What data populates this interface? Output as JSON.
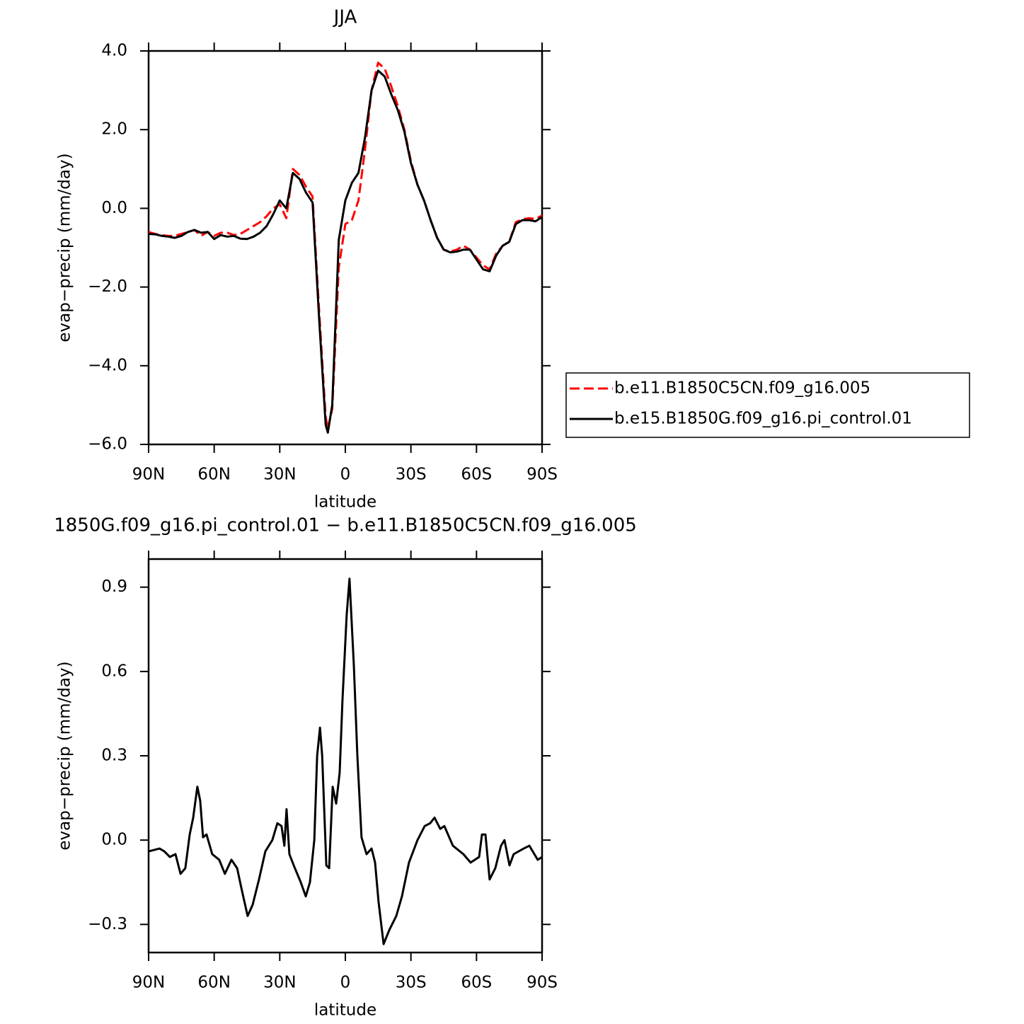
{
  "chart_data": [
    {
      "type": "line",
      "title": "JJA",
      "xlabel": "latitude",
      "ylabel": "evap−precip (mm/day)",
      "x": [
        90,
        87,
        84,
        81,
        78,
        75,
        72,
        69,
        66,
        63,
        60,
        57,
        54,
        51,
        48,
        45,
        42,
        39,
        36,
        33,
        30,
        27,
        24,
        21,
        18,
        15,
        12,
        9,
        8,
        6,
        3,
        0,
        -3,
        -6,
        -9,
        -12,
        -15,
        -18,
        -21,
        -24,
        -27,
        -30,
        -33,
        -36,
        -39,
        -42,
        -45,
        -48,
        -51,
        -54,
        -57,
        -60,
        -63,
        -66,
        -69,
        -72,
        -75,
        -78,
        -81,
        -84,
        -87,
        -90
      ],
      "series": [
        {
          "name": "b.e11.B1850C5CN.f09_g16.005",
          "color": "#ff0000",
          "dash": true,
          "values": [
            -0.6,
            -0.65,
            -0.68,
            -0.7,
            -0.7,
            -0.65,
            -0.6,
            -0.55,
            -0.7,
            -0.6,
            -0.7,
            -0.62,
            -0.62,
            -0.68,
            -0.65,
            -0.55,
            -0.45,
            -0.35,
            -0.2,
            0.0,
            0.1,
            -0.25,
            1.0,
            0.85,
            0.55,
            0.3,
            -2.6,
            -5.3,
            -5.6,
            -5.1,
            -1.5,
            -0.4,
            -0.3,
            0.2,
            1.5,
            3.0,
            3.7,
            3.55,
            3.1,
            2.6,
            2.0,
            1.2,
            0.6,
            0.2,
            -0.3,
            -0.75,
            -1.05,
            -1.1,
            -1.05,
            -0.95,
            -1.05,
            -1.25,
            -1.45,
            -1.55,
            -1.15,
            -0.95,
            -0.85,
            -0.35,
            -0.28,
            -0.25,
            -0.27,
            -0.18
          ]
        },
        {
          "name": "b.e15.B1850G.f09_g16.pi_control.01",
          "color": "#000000",
          "dash": false,
          "values": [
            -0.65,
            -0.66,
            -0.7,
            -0.72,
            -0.75,
            -0.7,
            -0.6,
            -0.55,
            -0.62,
            -0.6,
            -0.78,
            -0.68,
            -0.72,
            -0.7,
            -0.77,
            -0.78,
            -0.72,
            -0.62,
            -0.45,
            -0.15,
            0.2,
            0.0,
            0.9,
            0.75,
            0.4,
            0.15,
            -2.8,
            -5.5,
            -5.7,
            -5.0,
            -0.8,
            0.2,
            0.65,
            0.9,
            1.8,
            3.0,
            3.5,
            3.35,
            2.9,
            2.5,
            1.95,
            1.15,
            0.6,
            0.2,
            -0.3,
            -0.75,
            -1.05,
            -1.12,
            -1.1,
            -1.05,
            -1.05,
            -1.3,
            -1.55,
            -1.6,
            -1.2,
            -0.95,
            -0.85,
            -0.4,
            -0.3,
            -0.3,
            -0.33,
            -0.22
          ]
        }
      ],
      "xlim": [
        90,
        -90
      ],
      "xticks": [
        {
          "value": 90,
          "label": "90N"
        },
        {
          "value": 60,
          "label": "60N"
        },
        {
          "value": 30,
          "label": "30N"
        },
        0,
        {
          "value": -30,
          "label": "30S"
        },
        {
          "value": -60,
          "label": "60S"
        },
        {
          "value": -90,
          "label": "90S"
        }
      ],
      "ylim": [
        -6,
        4
      ],
      "yticks": [
        {
          "value": -6,
          "label": "−6.0"
        },
        {
          "value": -4,
          "label": "−4.0"
        },
        {
          "value": -2,
          "label": "−2.0"
        },
        {
          "value": 0,
          "label": "0.0"
        },
        {
          "value": 2,
          "label": "2.0"
        },
        {
          "value": 4,
          "label": "4.0"
        }
      ],
      "legend": "outside-right"
    },
    {
      "type": "line",
      "title": "1850G.f09_g16.pi_control.01 − b.e11.B1850C5CN.f09_g16.005",
      "xlabel": "latitude",
      "ylabel": "evap−precip (mm/day)",
      "x": [
        90,
        85,
        82.8,
        80.3,
        77.7,
        75.4,
        73.2,
        71.2,
        69.6,
        67.7,
        66.4,
        65.1,
        63.5,
        60.9,
        57.7,
        55.1,
        52.1,
        49.5,
        47.3,
        44.7,
        42.4,
        39.5,
        36.6,
        33.4,
        31.1,
        29.2,
        27.9,
        26.9,
        25.6,
        23.6,
        20.4,
        18.1,
        16.2,
        14.2,
        12.9,
        11.6,
        10.6,
        8.7,
        7.4,
        5.8,
        4.2,
        2.6,
        1.3,
        -0.6,
        -1.9,
        -3.9,
        -5.5,
        -7.4,
        -9.7,
        -12,
        -13.6,
        -15.2,
        -17.5,
        -20.1,
        -23.3,
        -25.9,
        -29.1,
        -33,
        -36.3,
        -38.8,
        -40.8,
        -43.4,
        -45.3,
        -49.2,
        -54,
        -57.3,
        -61.2,
        -62.5,
        -64.1,
        -66,
        -68.6,
        -71.2,
        -72.8,
        -75.1,
        -77,
        -81.6,
        -84.2,
        -88,
        -90
      ],
      "series": [
        {
          "color": "#000000",
          "dash": false,
          "values": [
            -0.04,
            -0.03,
            -0.04,
            -0.06,
            -0.05,
            -0.12,
            -0.1,
            0.02,
            0.08,
            0.19,
            0.14,
            0.01,
            0.02,
            -0.05,
            -0.07,
            -0.12,
            -0.07,
            -0.1,
            -0.18,
            -0.27,
            -0.23,
            -0.14,
            -0.04,
            0.0,
            0.06,
            0.05,
            -0.02,
            0.11,
            -0.05,
            -0.09,
            -0.15,
            -0.2,
            -0.15,
            0.0,
            0.3,
            0.4,
            0.3,
            -0.09,
            -0.1,
            0.19,
            0.13,
            0.24,
            0.5,
            0.8,
            0.93,
            0.62,
            0.3,
            0.01,
            -0.05,
            -0.03,
            -0.08,
            -0.22,
            -0.37,
            -0.32,
            -0.27,
            -0.2,
            -0.08,
            0.0,
            0.05,
            0.06,
            0.08,
            0.04,
            0.05,
            -0.02,
            -0.05,
            -0.08,
            -0.06,
            0.02,
            0.02,
            -0.14,
            -0.1,
            -0.02,
            0.0,
            -0.09,
            -0.05,
            -0.03,
            -0.02,
            -0.07,
            -0.06
          ]
        }
      ],
      "xlim": [
        90,
        -90
      ],
      "xticks": [
        {
          "value": 90,
          "label": "90N"
        },
        {
          "value": 60,
          "label": "60N"
        },
        {
          "value": 30,
          "label": "30N"
        },
        0,
        {
          "value": -30,
          "label": "30S"
        },
        {
          "value": -60,
          "label": "60S"
        },
        {
          "value": -90,
          "label": "90S"
        }
      ],
      "ylim": [
        -0.4,
        1.0
      ],
      "yticks": [
        {
          "value": -0.3,
          "label": "−0.3"
        },
        {
          "value": 0,
          "label": "0.0"
        },
        0.3,
        0.6,
        0.9
      ]
    }
  ]
}
